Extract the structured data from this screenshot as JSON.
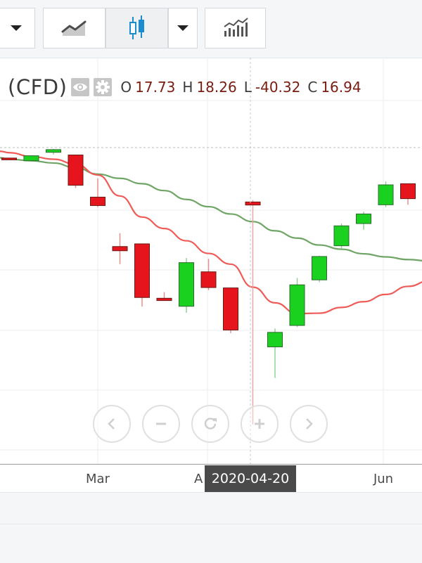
{
  "toolbar": {
    "buttons": [
      {
        "name": "timeframe-dropdown",
        "icon": "chevron-down-icon"
      },
      {
        "name": "line-chart-type",
        "icon": "line-chart-icon"
      },
      {
        "name": "candlestick-chart-type",
        "icon": "candlestick-icon",
        "active": true
      },
      {
        "name": "chart-type-dropdown",
        "icon": "chevron-down-icon"
      },
      {
        "name": "indicators",
        "icon": "indicators-chart-icon"
      }
    ]
  },
  "legend": {
    "symbol": "(CFD)",
    "open_key": "O",
    "open": "17.73",
    "high_key": "H",
    "high": "18.26",
    "low_key": "L",
    "low": "-40.32",
    "close_key": "C",
    "close": "16.94"
  },
  "nav": {
    "buttons": [
      "scroll-left-icon",
      "zoom-out-icon",
      "reset-icon",
      "zoom-in-icon",
      "scroll-right-icon"
    ]
  },
  "xaxis": {
    "ticks": [
      "Mar",
      "A",
      "Jun"
    ],
    "hover_label": "2020-04-20"
  },
  "colors": {
    "up": "#19d11e",
    "down": "#e6141c",
    "ma_fast": "#ef5b57",
    "ma_slow": "#6fa565",
    "legend_value": "#7a1c10"
  },
  "chart_data": {
    "type": "candlestick",
    "title": "",
    "xlabel": "",
    "ylabel": "",
    "grid": true,
    "y_scale_note": "",
    "candles": [
      {
        "open": 29.2,
        "high": 29.3,
        "low": 28.9,
        "close": 29.0
      },
      {
        "open": 28.5,
        "high": 29.9,
        "low": 28.4,
        "close": 29.8
      },
      {
        "open": 30.7,
        "high": 31.6,
        "low": 30.1,
        "close": 31.4
      },
      {
        "open": 30.0,
        "high": 30.1,
        "low": 21.4,
        "close": 22.1
      },
      {
        "open": 19.0,
        "high": 23.9,
        "low": 16.4,
        "close": 16.8
      },
      {
        "open": 6.1,
        "high": 9.6,
        "low": 1.5,
        "close": 5.0
      },
      {
        "open": 6.8,
        "high": 6.8,
        "low": -9.6,
        "close": -7.2
      },
      {
        "open": -7.4,
        "high": -5.8,
        "low": -8.1,
        "close": -8.0
      },
      {
        "open": -9.5,
        "high": 3.1,
        "low": -11.2,
        "close": 1.9
      },
      {
        "open": -0.5,
        "high": 2.9,
        "low": -5.3,
        "close": -4.6
      },
      {
        "open": -4.7,
        "high": -4.8,
        "low": -16.5,
        "close": -15.7
      },
      {
        "open": 17.73,
        "high": 18.26,
        "low": -40.32,
        "close": 16.94
      },
      {
        "open": -20.1,
        "high": -15.3,
        "low": -28.2,
        "close": -16.3
      },
      {
        "open": -14.5,
        "high": -2.1,
        "low": -14.9,
        "close": -3.9
      },
      {
        "open": -2.6,
        "high": 3.7,
        "low": -3.2,
        "close": 3.5
      },
      {
        "open": 6.3,
        "high": 12.1,
        "low": 5.5,
        "close": 11.5
      },
      {
        "open": 12.1,
        "high": 15.2,
        "low": 10.5,
        "close": 14.6
      },
      {
        "open": 17.0,
        "high": 23.1,
        "low": 16.4,
        "close": 22.2
      },
      {
        "open": 22.5,
        "high": 22.4,
        "low": 17.0,
        "close": 18.6
      },
      {
        "open": 17.7,
        "high": 24.1,
        "low": 17.7,
        "close": 23.3
      }
    ],
    "ma_fast": [
      30.6,
      29.6,
      28.9,
      27.6,
      24.8,
      19.3,
      13.8,
      10.8,
      7.6,
      4.3,
      1.5,
      -4.5,
      -8.6,
      -11.4,
      -11.3,
      -9.8,
      -8.3,
      -6.4,
      -4.3,
      -2.8
    ],
    "ma_slow": [
      28.9,
      28.5,
      27.9,
      26.7,
      25.0,
      23.9,
      22.5,
      20.7,
      18.4,
      16.5,
      14.6,
      12.6,
      10.2,
      8.3,
      6.5,
      5.4,
      4.2,
      3.4,
      2.7,
      2.3
    ],
    "x_ticks": [
      "Mar",
      "A",
      "Jun"
    ],
    "crosshair_value_row": 11
  }
}
